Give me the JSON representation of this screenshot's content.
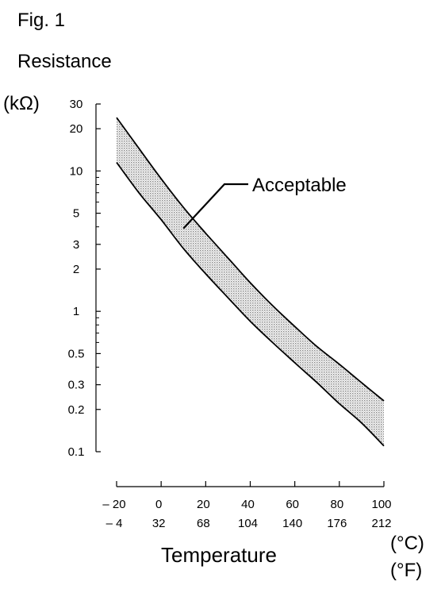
{
  "figure_label": "Fig. 1",
  "chart_data": {
    "type": "area",
    "y_title": "Resistance",
    "y_unit": "(kΩ)",
    "x_title": "Temperature",
    "x_unit_c": "(°C)",
    "x_unit_f": "(°F)",
    "y_scale": "log",
    "ylim": [
      0.1,
      30
    ],
    "xlim": [
      -20,
      100
    ],
    "y_ticks": [
      {
        "value": 30,
        "label": "30"
      },
      {
        "value": 20,
        "label": "20"
      },
      {
        "value": 10,
        "label": "10"
      },
      {
        "value": 5,
        "label": "5"
      },
      {
        "value": 3,
        "label": "3"
      },
      {
        "value": 2,
        "label": "2"
      },
      {
        "value": 1,
        "label": "1"
      },
      {
        "value": 0.5,
        "label": "0.5"
      },
      {
        "value": 0.3,
        "label": "0.3"
      },
      {
        "value": 0.2,
        "label": "0.2"
      },
      {
        "value": 0.1,
        "label": "0.1"
      }
    ],
    "y_minor_ticks": [
      9,
      8,
      7,
      6,
      4,
      0.9,
      0.8,
      0.7,
      0.6,
      0.4
    ],
    "x_ticks_c": [
      {
        "value": -20,
        "label": "– 20"
      },
      {
        "value": 0,
        "label": "0"
      },
      {
        "value": 20,
        "label": "20"
      },
      {
        "value": 40,
        "label": "40"
      },
      {
        "value": 60,
        "label": "60"
      },
      {
        "value": 80,
        "label": "80"
      },
      {
        "value": 100,
        "label": "100"
      }
    ],
    "x_ticks_f": [
      {
        "value": -20,
        "label": "– 4"
      },
      {
        "value": 0,
        "label": "32"
      },
      {
        "value": 20,
        "label": "68"
      },
      {
        "value": 40,
        "label": "104"
      },
      {
        "value": 60,
        "label": "140"
      },
      {
        "value": 80,
        "label": "176"
      },
      {
        "value": 100,
        "label": "212"
      }
    ],
    "series": [
      {
        "x": [
          -20,
          -10,
          0,
          10,
          20,
          30,
          40,
          50,
          60,
          70,
          80,
          90,
          100
        ],
        "values": [
          24,
          14.5,
          8.8,
          5.5,
          3.6,
          2.4,
          1.6,
          1.1,
          0.78,
          0.56,
          0.42,
          0.31,
          0.23
        ]
      },
      {
        "x": [
          -20,
          -10,
          0,
          10,
          20,
          30,
          40,
          50,
          60,
          70,
          80,
          90,
          100
        ],
        "values": [
          11.5,
          7,
          4.5,
          2.8,
          1.85,
          1.25,
          0.85,
          0.6,
          0.43,
          0.31,
          0.22,
          0.16,
          0.11
        ]
      }
    ],
    "annotation": {
      "text": "Acceptable",
      "x": 10,
      "y": 3.9
    },
    "colors": {
      "line": "#000000",
      "band": "#b8b8b8"
    },
    "grid": false
  }
}
